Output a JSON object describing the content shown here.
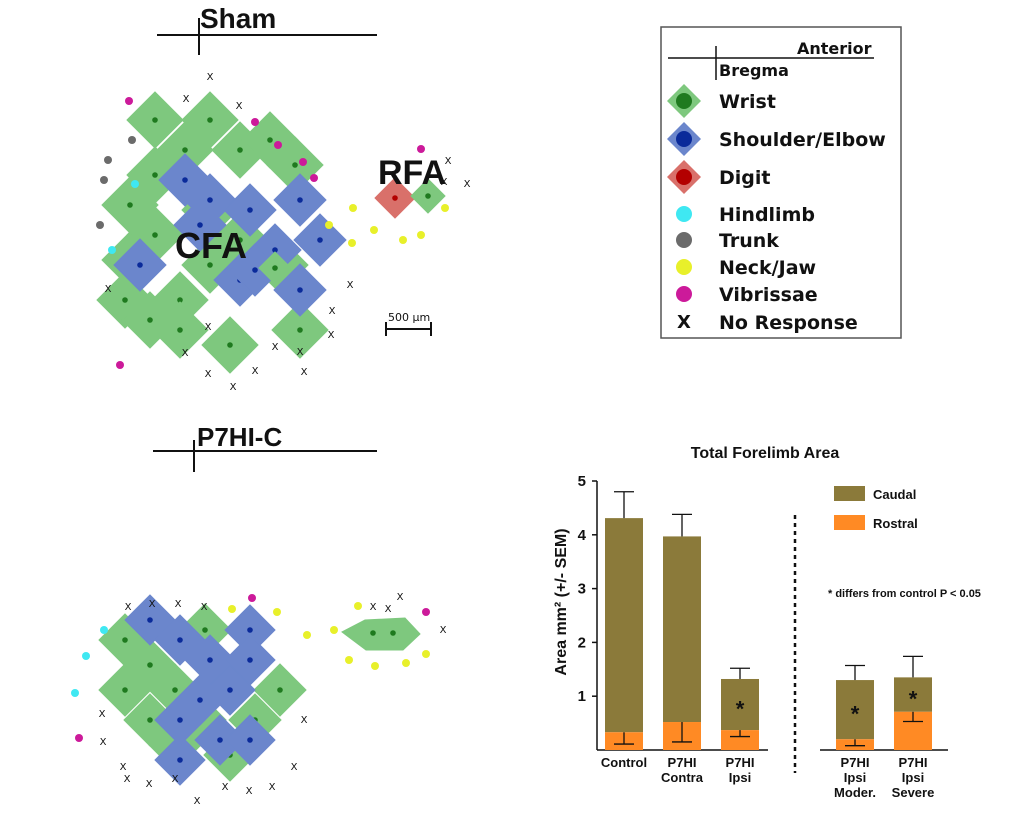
{
  "maps": {
    "sham_title": "Sham",
    "p7hi_title": "P7HI-C",
    "cfa_label": "CFA",
    "rfa_label": "RFA",
    "scale_label": "500 µm"
  },
  "legend": {
    "anterior": "Anterior",
    "bregma": "Bregma",
    "items": [
      {
        "label": "Wrist",
        "color": "#7ec87e",
        "dot": "#1f7a1f",
        "shape": "diamond"
      },
      {
        "label": "Shoulder/Elbow",
        "color": "#6b86cc",
        "dot": "#0a2a9a",
        "shape": "diamond"
      },
      {
        "label": "Digit",
        "color": "#d9706a",
        "dot": "#b30000",
        "shape": "diamond"
      },
      {
        "label": "Hindlimb",
        "color": "#3fe8f2",
        "shape": "circle"
      },
      {
        "label": "Trunk",
        "color": "#6b6b6b",
        "shape": "circle"
      },
      {
        "label": "Neck/Jaw",
        "color": "#e8f02a",
        "shape": "circle"
      },
      {
        "label": "Vibrissae",
        "color": "#cc1a9a",
        "shape": "circle"
      },
      {
        "label": "No Response",
        "symbol": "X",
        "shape": "x"
      }
    ]
  },
  "colors": {
    "wrist": "#7ec87e",
    "wrist_dot": "#1f7a1f",
    "shoulder": "#6b86cc",
    "shoulder_dot": "#0a2a9a",
    "digit": "#d9706a",
    "digit_dot": "#b30000",
    "hindlimb": "#3fe8f2",
    "trunk": "#6b6b6b",
    "neck": "#e8f02a",
    "vibrissae": "#cc1a9a",
    "caudal": "#8b7a3a",
    "rostral": "#ff8a24"
  },
  "chart_data": {
    "type": "bar",
    "stacked": true,
    "title": "Total Forelimb Area",
    "ylabel": "Area mm² (+/- SEM)",
    "ylim": [
      0,
      5
    ],
    "yticks": [
      "1",
      "2",
      "3",
      "4",
      "5"
    ],
    "categories": [
      {
        "line1": "Control",
        "line2": "",
        "line3": ""
      },
      {
        "line1": "P7HI",
        "line2": "Contra",
        "line3": ""
      },
      {
        "line1": "P7HI",
        "line2": "Ipsi",
        "line3": ""
      },
      {
        "line1": "P7HI",
        "line2": "Ipsi",
        "line3": "Moder."
      },
      {
        "line1": "P7HI",
        "line2": "Ipsi",
        "line3": "Severe"
      }
    ],
    "series": [
      {
        "name": "Rostral",
        "color": "#ff8a24",
        "values": [
          0.33,
          0.52,
          0.37,
          0.2,
          0.71
        ],
        "error": [
          0.22,
          0.37,
          0.12,
          0.12,
          0.18
        ]
      },
      {
        "name": "Caudal",
        "color": "#8b7a3a",
        "values": [
          3.98,
          3.45,
          0.95,
          1.1,
          0.64
        ],
        "error": [
          0.49,
          0.41,
          0.2,
          0.27,
          0.39
        ]
      }
    ],
    "significance": [
      false,
      false,
      true,
      true,
      true
    ],
    "significance_marker": "*",
    "note": "* differs from control P < 0.05",
    "legend_position": "top-right",
    "separator_after_index": 2
  }
}
